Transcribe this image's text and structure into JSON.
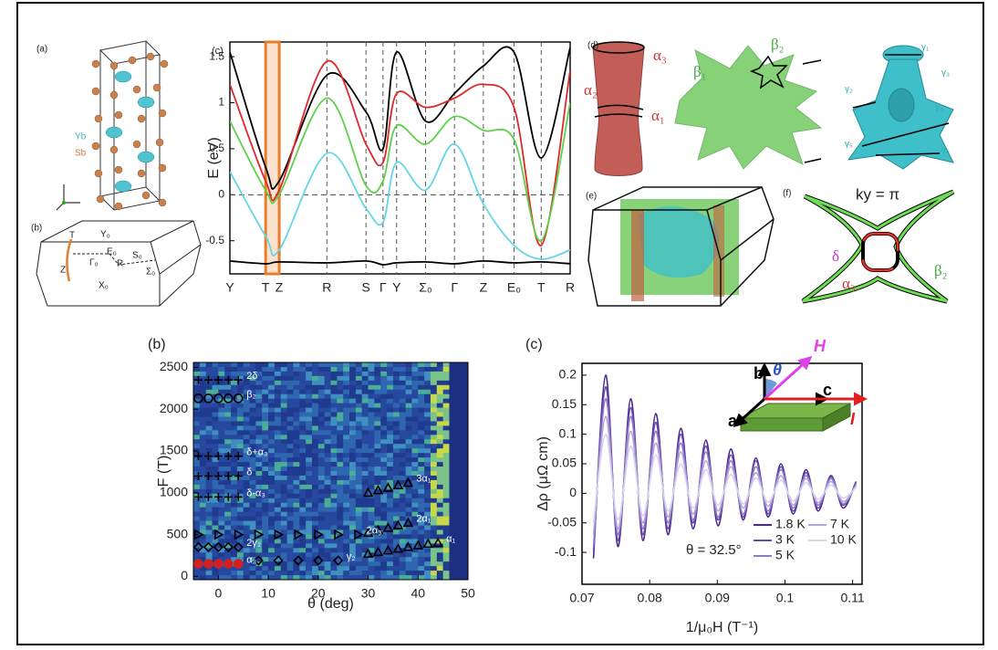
{
  "figure": {
    "panel_a": {
      "label": "(a)",
      "atoms": [
        "Yb",
        "Sb"
      ]
    },
    "panel_b": {
      "label": "(b)",
      "points": [
        "T",
        "Y₀",
        "Z",
        "Γ₀",
        "E₀",
        "R",
        "S₀",
        "Σ₀",
        "X₀"
      ]
    },
    "panel_d": {
      "label": "(d)",
      "alpha": [
        "α₃",
        "α₂",
        "α₁"
      ],
      "beta": [
        "β₁",
        "β₂"
      ],
      "gamma": [
        "γ₁",
        "γ₂",
        "γ₃",
        "γ₄",
        "γ₅",
        "γ₆"
      ]
    },
    "panel_e": {
      "label": "(e)"
    },
    "panel_f": {
      "label": "(f)",
      "ky": "ky = π",
      "delta": "δ",
      "alpha": "α₃",
      "beta": "β₂"
    }
  },
  "chart_data": [
    {
      "type": "line",
      "panel_label": "(c)",
      "ylabel": "E (eV)",
      "categories": [
        "Y",
        "T",
        "Z",
        "R",
        "S",
        "Γ",
        "Y",
        "Σ₀",
        "Γ",
        "Z",
        "E₀",
        "T",
        "R"
      ],
      "ylim": [
        -0.86,
        1.66
      ],
      "yticks": [
        1.5,
        1,
        0.5,
        0,
        -0.5
      ],
      "zero_line": true,
      "series": [
        {
          "color": "#000000",
          "values": [
            1.55,
            0.3,
            0.15,
            1.3,
            0.9,
            0.5,
            1.55,
            0.8,
            1.1,
            1.4,
            1.55,
            0.4,
            1.6
          ]
        },
        {
          "color": "#e0282a",
          "values": [
            1.2,
            0.15,
            0.05,
            1.45,
            0.55,
            0.35,
            1.1,
            0.95,
            1.05,
            1.2,
            0.95,
            -0.55,
            1.35
          ]
        },
        {
          "color": "#5fd04a",
          "values": [
            0.8,
            0.05,
            0,
            1.05,
            0.1,
            0.15,
            0.75,
            0.55,
            0.85,
            0.7,
            0.6,
            -0.5,
            1.0
          ]
        },
        {
          "color": "#62d6e6",
          "values": [
            0.25,
            -0.45,
            -0.6,
            0.45,
            -0.15,
            -0.3,
            0.35,
            0.05,
            0.55,
            -0.1,
            -0.55,
            -0.7,
            -0.6
          ]
        },
        {
          "color": "#000000",
          "values": [
            -0.72,
            -0.75,
            -0.73,
            -0.74,
            -0.72,
            -0.76,
            -0.74,
            -0.73,
            -0.75,
            -0.72,
            -0.74,
            -0.73,
            -0.75
          ]
        }
      ]
    },
    {
      "type": "scatter",
      "panel_label": "(b)",
      "xlabel": "θ (deg)",
      "ylabel": "F (T)",
      "xlim": [
        -5,
        50
      ],
      "ylim": [
        -40,
        2560
      ],
      "xticks": [
        0,
        10,
        20,
        30,
        40,
        50
      ],
      "yticks": [
        0,
        500,
        1000,
        1500,
        2000,
        2500
      ],
      "series": [
        {
          "name": "2δ",
          "marker": "plus",
          "color": "#000000",
          "x": [
            -4,
            -2,
            0,
            2,
            4
          ],
          "y": [
            2350,
            2350,
            2350,
            2350,
            2350
          ]
        },
        {
          "name": "β₂",
          "marker": "circle",
          "color": "#000000",
          "x": [
            -4,
            -2,
            0,
            2,
            4
          ],
          "y": [
            2130,
            2130,
            2130,
            2130,
            2130
          ]
        },
        {
          "name": "δ+α₃",
          "marker": "plus",
          "color": "#000000",
          "x": [
            -4,
            -2,
            0,
            2,
            4
          ],
          "y": [
            1440,
            1440,
            1440,
            1440,
            1440
          ]
        },
        {
          "name": "δ",
          "marker": "plus",
          "color": "#000000",
          "x": [
            -4,
            -2,
            0,
            2,
            4
          ],
          "y": [
            1200,
            1200,
            1200,
            1200,
            1200
          ]
        },
        {
          "name": "δ-α₃",
          "marker": "plus",
          "color": "#000000",
          "x": [
            -4,
            -2,
            0,
            2,
            4
          ],
          "y": [
            950,
            950,
            950,
            950,
            950
          ]
        },
        {
          "name": "3α₁",
          "marker": "triangle",
          "color": "#000000",
          "x": [
            30,
            32,
            34,
            36,
            38
          ],
          "y": [
            1000,
            1030,
            1060,
            1090,
            1120
          ]
        },
        {
          "name": "2α₁",
          "marker": "triangle",
          "color": "#000000",
          "x": [
            30,
            32,
            34,
            36,
            38
          ],
          "y": [
            520,
            550,
            580,
            610,
            640
          ]
        },
        {
          "name": "2α₃",
          "marker": "right",
          "color": "#000000",
          "x": [
            -4,
            0,
            4,
            8,
            12,
            16,
            20,
            24,
            28
          ],
          "y": [
            500,
            500,
            500,
            500,
            500,
            500,
            500,
            500,
            500
          ]
        },
        {
          "name": "2γ₂",
          "marker": "diamond",
          "color": "#000000",
          "x": [
            -4,
            -2,
            0,
            2,
            4
          ],
          "y": [
            350,
            350,
            350,
            350,
            350
          ]
        },
        {
          "name": "α₁",
          "marker": "triangle",
          "color": "#000000",
          "x": [
            30,
            32,
            34,
            36,
            38,
            40,
            42,
            44
          ],
          "y": [
            270,
            290,
            310,
            330,
            350,
            370,
            390,
            400
          ]
        },
        {
          "name": "γ₂",
          "marker": "diamond",
          "color": "#000000",
          "x": [
            8,
            12,
            16,
            20,
            24
          ],
          "y": [
            190,
            190,
            190,
            190,
            190
          ]
        },
        {
          "name": "α₃",
          "marker": "circle",
          "color": "#d22020",
          "x": [
            -4,
            -2,
            0,
            2,
            4
          ],
          "y": [
            150,
            150,
            150,
            150,
            150
          ]
        }
      ]
    },
    {
      "type": "line",
      "panel_label": "(c)",
      "xlabel": "1/μ₀H (T⁻¹)",
      "ylabel": "Δρ (μΩ cm)",
      "xlim": [
        0.07,
        0.1114
      ],
      "ylim": [
        -0.154,
        0.22
      ],
      "xticks": [
        0.07,
        0.08,
        0.09,
        0.1,
        0.11
      ],
      "yticks": [
        0.2,
        0.15,
        0.1,
        0.05,
        0,
        -0.05,
        -0.1
      ],
      "annotation": "θ = 32.5°",
      "inset": {
        "b": "b",
        "c": "c",
        "a": "a",
        "H": "H",
        "theta": "θ",
        "I": "I"
      },
      "x": [
        0.0717,
        0.0735,
        0.0753,
        0.0772,
        0.079,
        0.0809,
        0.0827,
        0.0846,
        0.0864,
        0.0883,
        0.0901,
        0.092,
        0.0938,
        0.0957,
        0.0975,
        0.0994,
        0.1012,
        0.1031,
        0.1049,
        0.1068,
        0.1086,
        0.1105
      ],
      "series": [
        {
          "name": "1.8 K",
          "color": "#4b2a8f",
          "values": [
            -0.11,
            0.2,
            -0.09,
            0.16,
            -0.08,
            0.135,
            -0.07,
            0.11,
            -0.06,
            0.09,
            -0.055,
            0.075,
            -0.045,
            0.06,
            -0.04,
            0.05,
            -0.035,
            0.04,
            -0.03,
            0.03,
            -0.025,
            0.02
          ]
        },
        {
          "name": "3 K",
          "color": "#6a4bb0",
          "values": [
            -0.1,
            0.18,
            -0.08,
            0.145,
            -0.07,
            0.12,
            -0.06,
            0.1,
            -0.05,
            0.08,
            -0.045,
            0.065,
            -0.04,
            0.055,
            -0.035,
            0.045,
            -0.03,
            0.035,
            -0.025,
            0.028,
            -0.02,
            0.018
          ]
        },
        {
          "name": "5 K",
          "color": "#8e7ac6",
          "values": [
            -0.09,
            0.16,
            -0.07,
            0.13,
            -0.06,
            0.105,
            -0.05,
            0.085,
            -0.045,
            0.07,
            -0.04,
            0.055,
            -0.035,
            0.045,
            -0.03,
            0.04,
            -0.025,
            0.03,
            -0.02,
            0.025,
            -0.018,
            0.015
          ]
        },
        {
          "name": "7 K",
          "color": "#b3a6dc",
          "values": [
            -0.07,
            0.13,
            -0.06,
            0.105,
            -0.05,
            0.085,
            -0.04,
            0.07,
            -0.035,
            0.055,
            -0.03,
            0.045,
            -0.025,
            0.035,
            -0.022,
            0.03,
            -0.02,
            0.025,
            -0.016,
            0.02,
            -0.014,
            0.012
          ]
        },
        {
          "name": "10 K",
          "color": "#d9d2ee",
          "values": [
            -0.05,
            0.1,
            -0.045,
            0.08,
            -0.038,
            0.065,
            -0.03,
            0.05,
            -0.025,
            0.04,
            -0.02,
            0.032,
            -0.018,
            0.026,
            -0.015,
            0.022,
            -0.013,
            0.018,
            -0.01,
            0.014,
            -0.008,
            0.01
          ]
        }
      ]
    }
  ]
}
